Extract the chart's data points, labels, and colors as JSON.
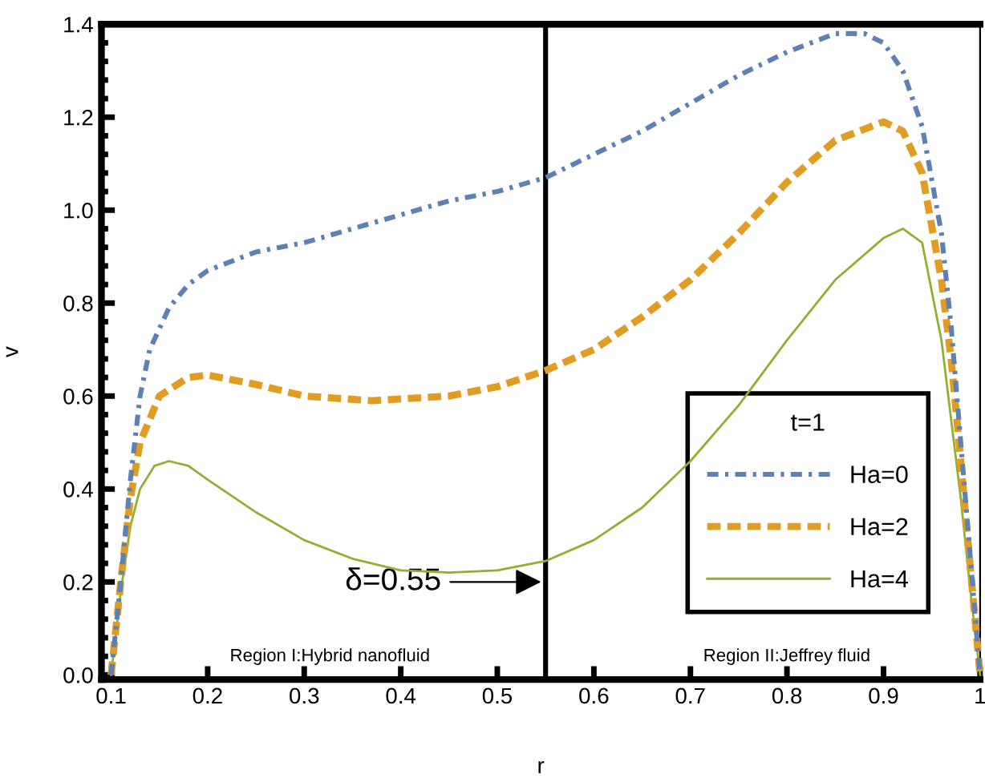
{
  "chart_data": {
    "type": "line",
    "xlabel": "r",
    "ylabel": "v",
    "legend_title": "t=1",
    "legend": "right",
    "grid": false,
    "xlim": [
      0.09,
      1.0
    ],
    "ylim": [
      -0.01,
      1.4
    ],
    "xticks": [
      0.1,
      0.2,
      0.3,
      0.4,
      0.5,
      0.6,
      0.7,
      0.8,
      0.9,
      1
    ],
    "yticks": [
      {
        "value": 0,
        "label": "0.0"
      },
      0.2,
      0.4,
      0.6,
      0.8,
      {
        "value": 1,
        "label": "1.0"
      },
      1.2,
      1.4
    ],
    "series": [
      {
        "name": "Ha=0",
        "color": "#5e81b5",
        "line_style": "dashdot",
        "x": [
          0.1,
          0.11,
          0.12,
          0.13,
          0.14,
          0.16,
          0.18,
          0.2,
          0.25,
          0.3,
          0.35,
          0.4,
          0.45,
          0.5,
          0.55,
          0.6,
          0.65,
          0.7,
          0.75,
          0.8,
          0.85,
          0.88,
          0.9,
          0.92,
          0.94,
          0.96,
          0.97,
          0.98,
          0.99,
          1.0
        ],
        "values": [
          0,
          0.2,
          0.42,
          0.6,
          0.7,
          0.79,
          0.84,
          0.87,
          0.91,
          0.93,
          0.96,
          0.99,
          1.02,
          1.04,
          1.07,
          1.12,
          1.17,
          1.23,
          1.29,
          1.34,
          1.38,
          1.38,
          1.36,
          1.3,
          1.18,
          0.95,
          0.75,
          0.5,
          0.25,
          0
        ]
      },
      {
        "name": "Ha=2",
        "color": "#e19c24",
        "line_style": "dashed",
        "x": [
          0.1,
          0.11,
          0.12,
          0.13,
          0.15,
          0.18,
          0.2,
          0.25,
          0.3,
          0.37,
          0.45,
          0.5,
          0.55,
          0.6,
          0.65,
          0.7,
          0.75,
          0.8,
          0.85,
          0.9,
          0.92,
          0.94,
          0.96,
          0.97,
          0.98,
          0.99,
          1.0
        ],
        "values": [
          0,
          0.2,
          0.38,
          0.5,
          0.6,
          0.64,
          0.645,
          0.625,
          0.6,
          0.59,
          0.6,
          0.62,
          0.655,
          0.7,
          0.77,
          0.85,
          0.95,
          1.06,
          1.15,
          1.19,
          1.17,
          1.08,
          0.85,
          0.68,
          0.46,
          0.23,
          0
        ]
      },
      {
        "name": "Ha=4",
        "color": "#8fb032",
        "line_style": "solid",
        "x": [
          0.1,
          0.11,
          0.12,
          0.13,
          0.145,
          0.16,
          0.18,
          0.2,
          0.25,
          0.3,
          0.35,
          0.4,
          0.45,
          0.5,
          0.55,
          0.6,
          0.65,
          0.7,
          0.75,
          0.8,
          0.85,
          0.9,
          0.92,
          0.94,
          0.96,
          0.97,
          0.98,
          0.99,
          1.0
        ],
        "values": [
          0,
          0.18,
          0.32,
          0.4,
          0.45,
          0.46,
          0.45,
          0.42,
          0.35,
          0.29,
          0.25,
          0.225,
          0.22,
          0.225,
          0.245,
          0.29,
          0.36,
          0.46,
          0.58,
          0.72,
          0.85,
          0.94,
          0.96,
          0.93,
          0.72,
          0.55,
          0.38,
          0.18,
          0
        ]
      }
    ],
    "ref_lines": [
      {
        "axis": "x",
        "value": 0.55,
        "color": "#000000"
      }
    ],
    "annotations": [
      {
        "text": "δ=0.55",
        "x": 0.55,
        "y": 0.2
      },
      "Region I:Hybrid nanofluid",
      "Region II:Jeffrey fluid"
    ]
  }
}
